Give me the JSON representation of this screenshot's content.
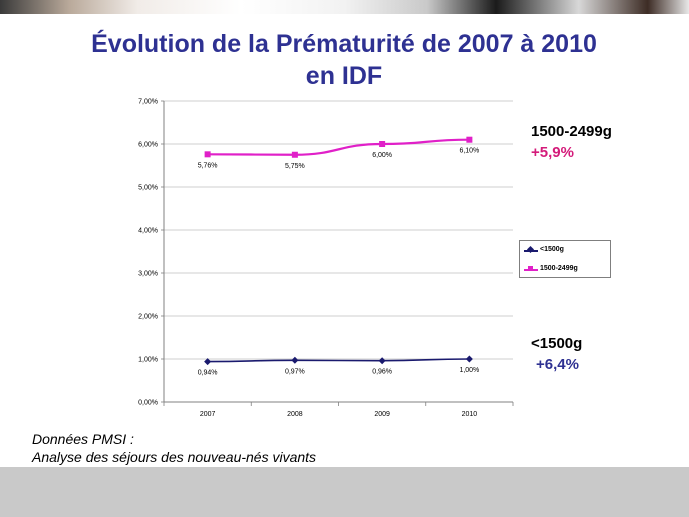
{
  "title": {
    "line1": "Évolution de la Prématurité de 2007 à 2010",
    "line2": "en IDF"
  },
  "annotations": {
    "upper_label": "1500-2499g",
    "upper_change": "+5,9%",
    "lower_label": "<1500g",
    "lower_change": "+6,4%"
  },
  "source": {
    "line1": "Données PMSI :",
    "line2": "Analyse des séjours des nouveau-nés vivants"
  },
  "colors": {
    "title": "#2e3192",
    "series_lt1500": "#1a1a6e",
    "series_1500_2499": "#e020c8",
    "upper_change": "#d41b7a",
    "lower_change": "#2e3192"
  },
  "chart_data": {
    "type": "line",
    "categories": [
      "2007",
      "2008",
      "2009",
      "2010"
    ],
    "yticks": [
      "0,00%",
      "1,00%",
      "2,00%",
      "3,00%",
      "4,00%",
      "5,00%",
      "6,00%",
      "7,00%"
    ],
    "ylim": [
      0,
      7
    ],
    "grid": true,
    "legend_position": "right",
    "series": [
      {
        "name": "<1500g",
        "values": [
          0.94,
          0.97,
          0.96,
          1.0
        ],
        "labels": [
          "0,94%",
          "0,97%",
          "0,96%",
          "1,00%"
        ],
        "marker": "diamond"
      },
      {
        "name": "1500-2499g",
        "values": [
          5.76,
          5.75,
          6.0,
          6.1
        ],
        "labels": [
          "5,76%",
          "5,75%",
          "6,00%",
          "6,10%"
        ],
        "marker": "square"
      }
    ]
  }
}
